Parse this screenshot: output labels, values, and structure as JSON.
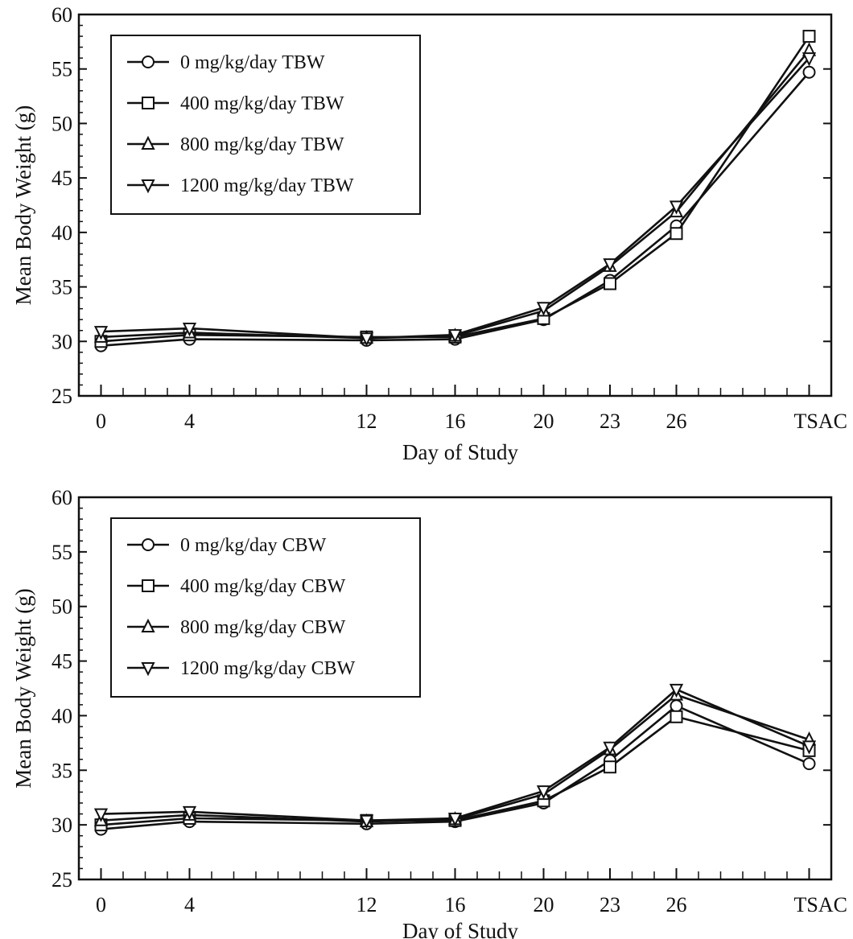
{
  "colors": {
    "ink": "#111111",
    "background": "#ffffff"
  },
  "chart_data": [
    {
      "type": "line",
      "xlabel": "Day of Study",
      "ylabel": "Mean Body Weight (g)",
      "ylim": [
        25,
        60
      ],
      "yticks": [
        25,
        30,
        35,
        40,
        45,
        50,
        55,
        60
      ],
      "categories": [
        "0",
        "4",
        "12",
        "16",
        "20",
        "23",
        "26",
        "TSAC"
      ],
      "category_days": [
        0,
        4,
        12,
        16,
        20,
        23,
        26,
        32
      ],
      "grid": false,
      "legend_position": "top-left",
      "series": [
        {
          "name": "0 mg/kg/day  TBW",
          "marker": "circle",
          "values": [
            29.6,
            30.2,
            30.1,
            30.2,
            32.0,
            35.6,
            40.6,
            54.7
          ]
        },
        {
          "name": "400 mg/kg/day TBW",
          "marker": "square",
          "values": [
            30.0,
            30.6,
            30.4,
            30.4,
            32.1,
            35.3,
            39.9,
            58.0
          ]
        },
        {
          "name": "800 mg/kg/day TBW",
          "marker": "triangle-up",
          "values": [
            30.4,
            30.8,
            30.3,
            30.5,
            32.8,
            36.9,
            41.9,
            56.7
          ]
        },
        {
          "name": "1200 mg/kg/day TBW",
          "marker": "triangle-down",
          "values": [
            30.9,
            31.2,
            30.3,
            30.6,
            33.1,
            37.1,
            42.4,
            56.0
          ]
        }
      ]
    },
    {
      "type": "line",
      "xlabel": "Day of Study",
      "ylabel": "Mean Body Weight (g)",
      "ylim": [
        25,
        60
      ],
      "yticks": [
        25,
        30,
        35,
        40,
        45,
        50,
        55,
        60
      ],
      "categories": [
        "0",
        "4",
        "12",
        "16",
        "20",
        "23",
        "26",
        "TSAC"
      ],
      "category_days": [
        0,
        4,
        12,
        16,
        20,
        23,
        26,
        32
      ],
      "grid": false,
      "legend_position": "top-left",
      "series": [
        {
          "name": "0 mg/kg/day CBW",
          "marker": "circle",
          "values": [
            29.6,
            30.3,
            30.1,
            30.3,
            32.0,
            35.9,
            40.9,
            35.6
          ]
        },
        {
          "name": "400 mg/kg/day CBW",
          "marker": "square",
          "values": [
            30.0,
            30.6,
            30.4,
            30.4,
            32.2,
            35.3,
            39.9,
            36.8
          ]
        },
        {
          "name": "800 mg/kg/day CBW",
          "marker": "triangle-up",
          "values": [
            30.4,
            30.9,
            30.3,
            30.5,
            32.8,
            36.9,
            41.9,
            37.8
          ]
        },
        {
          "name": "1200 mg/kg/day CBW",
          "marker": "triangle-down",
          "values": [
            31.0,
            31.2,
            30.4,
            30.6,
            33.1,
            37.1,
            42.4,
            37.2
          ]
        }
      ]
    }
  ]
}
